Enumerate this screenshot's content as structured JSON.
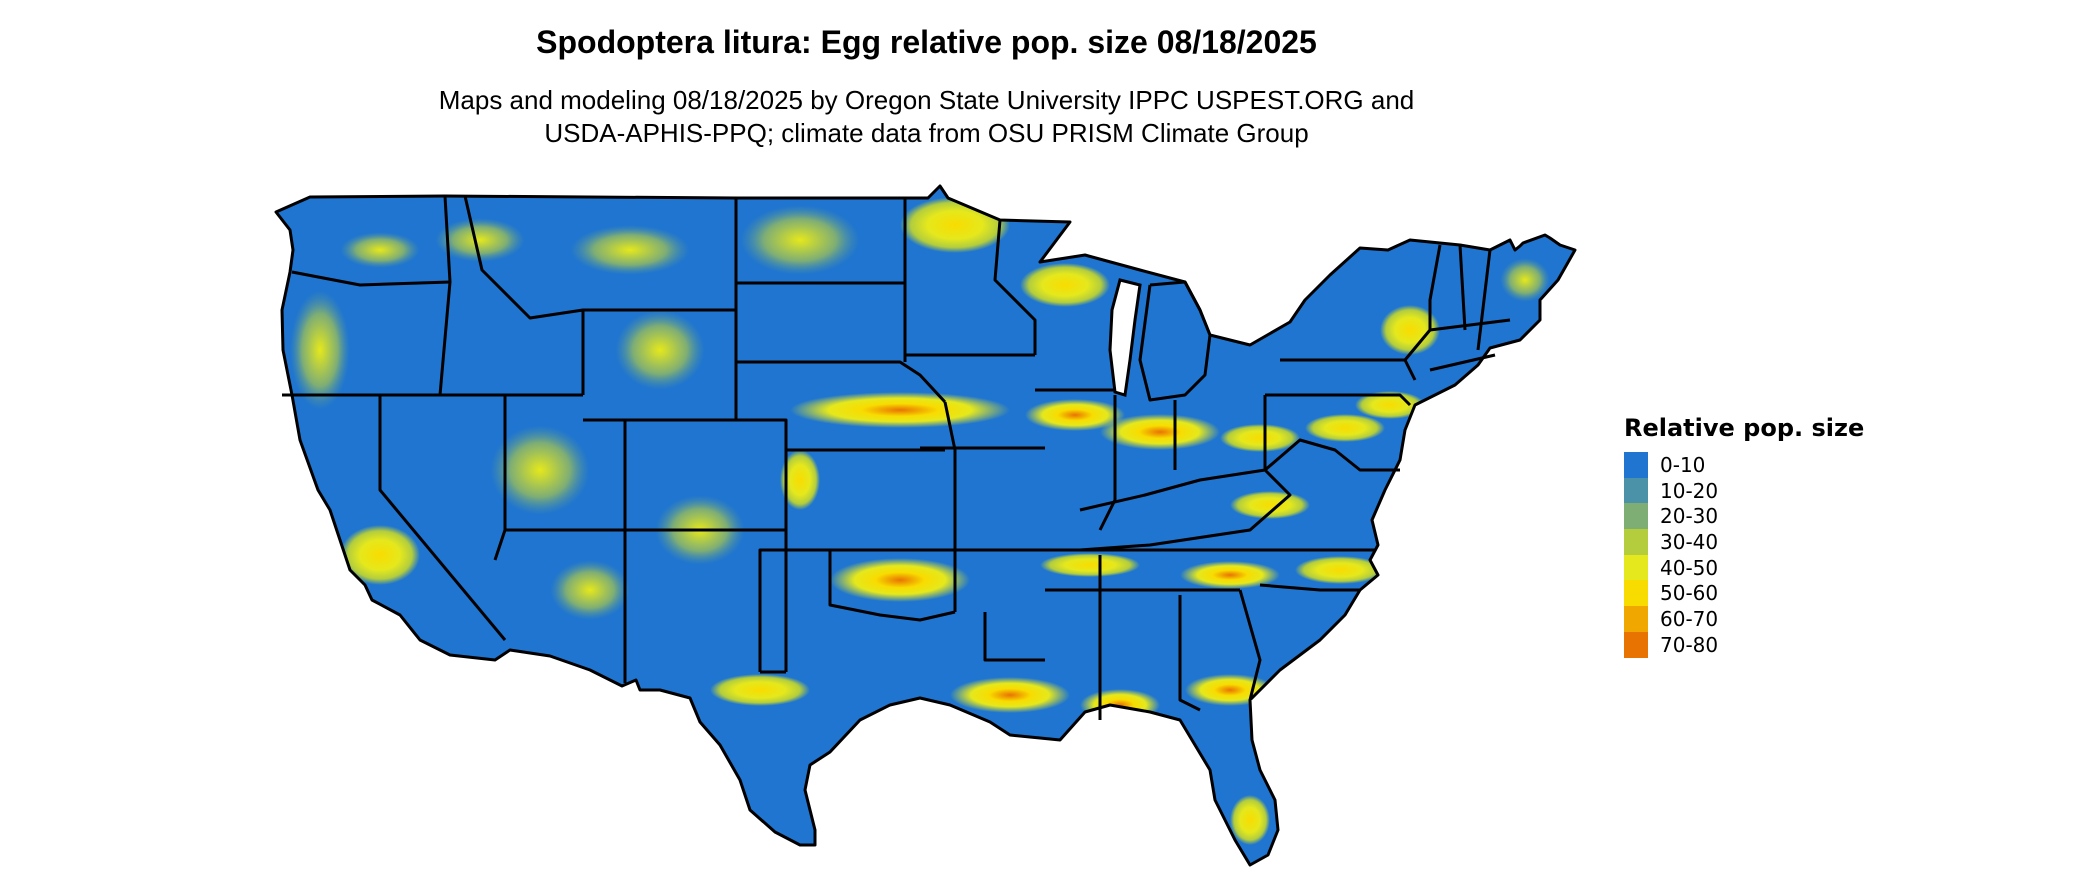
{
  "map": {
    "title": "Spodoptera litura: Egg relative pop. size 08/18/2025",
    "subtitle_line1": "Maps and modeling 08/18/2025 by Oregon State University IPPC USPEST.ORG and",
    "subtitle_line2": "USDA-APHIS-PPQ; climate data from OSU PRISM Climate Group",
    "region": "Contiguous United States",
    "base_color": "#1f75cf",
    "border_color": "#000000"
  },
  "legend": {
    "title": "Relative pop. size",
    "items": [
      {
        "label": "0-10",
        "color": "#1f75cf"
      },
      {
        "label": "10-20",
        "color": "#4b91a8"
      },
      {
        "label": "20-30",
        "color": "#7fae74"
      },
      {
        "label": "30-40",
        "color": "#b3cd3d"
      },
      {
        "label": "40-50",
        "color": "#e5e81c"
      },
      {
        "label": "50-60",
        "color": "#f8dc00"
      },
      {
        "label": "60-70",
        "color": "#f0a800"
      },
      {
        "label": "70-80",
        "color": "#e87300"
      }
    ]
  }
}
